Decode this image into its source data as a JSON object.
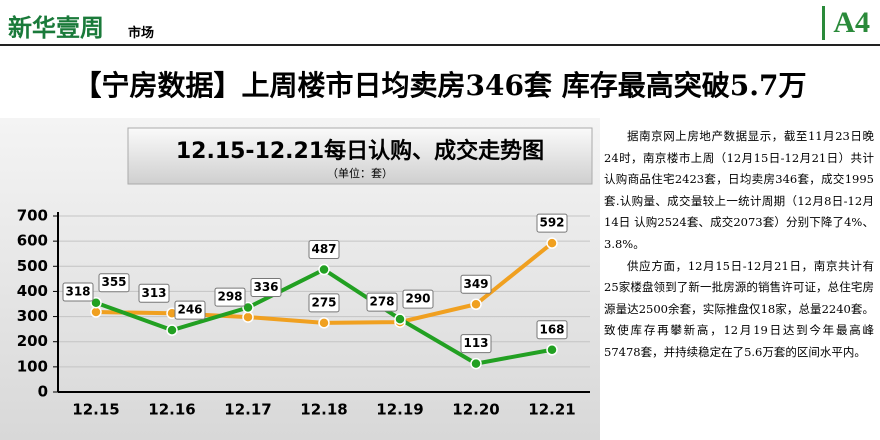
{
  "header": {
    "logo": "新华壹周",
    "section": "市场",
    "page": "A4"
  },
  "headline": "【宁房数据】上周楼市日均卖房346套 库存最高突破5.7万",
  "article": {
    "paragraphs": [
      "据南京网上房地产数据显示，截至11月23日晚24时，南京楼市上周（12月15日-12月21日）共计认购商品住宅2423套，日均卖房346套，成交1995套.认购量、成交量较上一统计周期（12月8日-12月14日 认购2524套、成交2073套）分别下降了4%、3.8%。",
      "供应方面，12月15日-12月21日，南京共计有25家楼盘领到了新一批房源的销售许可证，总住宅房源量达2500余套，实际推盘仅18家，总量2240套。致使库存再攀新高，12月19日达到今年最高峰57478套，并持续稳定在了5.6万套的区间水平内。"
    ]
  },
  "chart_data": {
    "type": "line",
    "title": "12.15-12.21每日认购、成交走势图",
    "subtitle": "（单位：套）",
    "categories": [
      "12.15",
      "12.16",
      "12.17",
      "12.18",
      "12.19",
      "12.20",
      "12.21"
    ],
    "series": [
      {
        "color": "#f0a020",
        "values": [
          318,
          313,
          298,
          275,
          278,
          349,
          592
        ]
      },
      {
        "color": "#22a022",
        "values": [
          355,
          246,
          336,
          487,
          290,
          113,
          168
        ]
      }
    ],
    "ylim": [
      0,
      700
    ],
    "yticks": [
      0,
      100,
      200,
      300,
      400,
      500,
      600,
      700
    ],
    "grid": true
  }
}
